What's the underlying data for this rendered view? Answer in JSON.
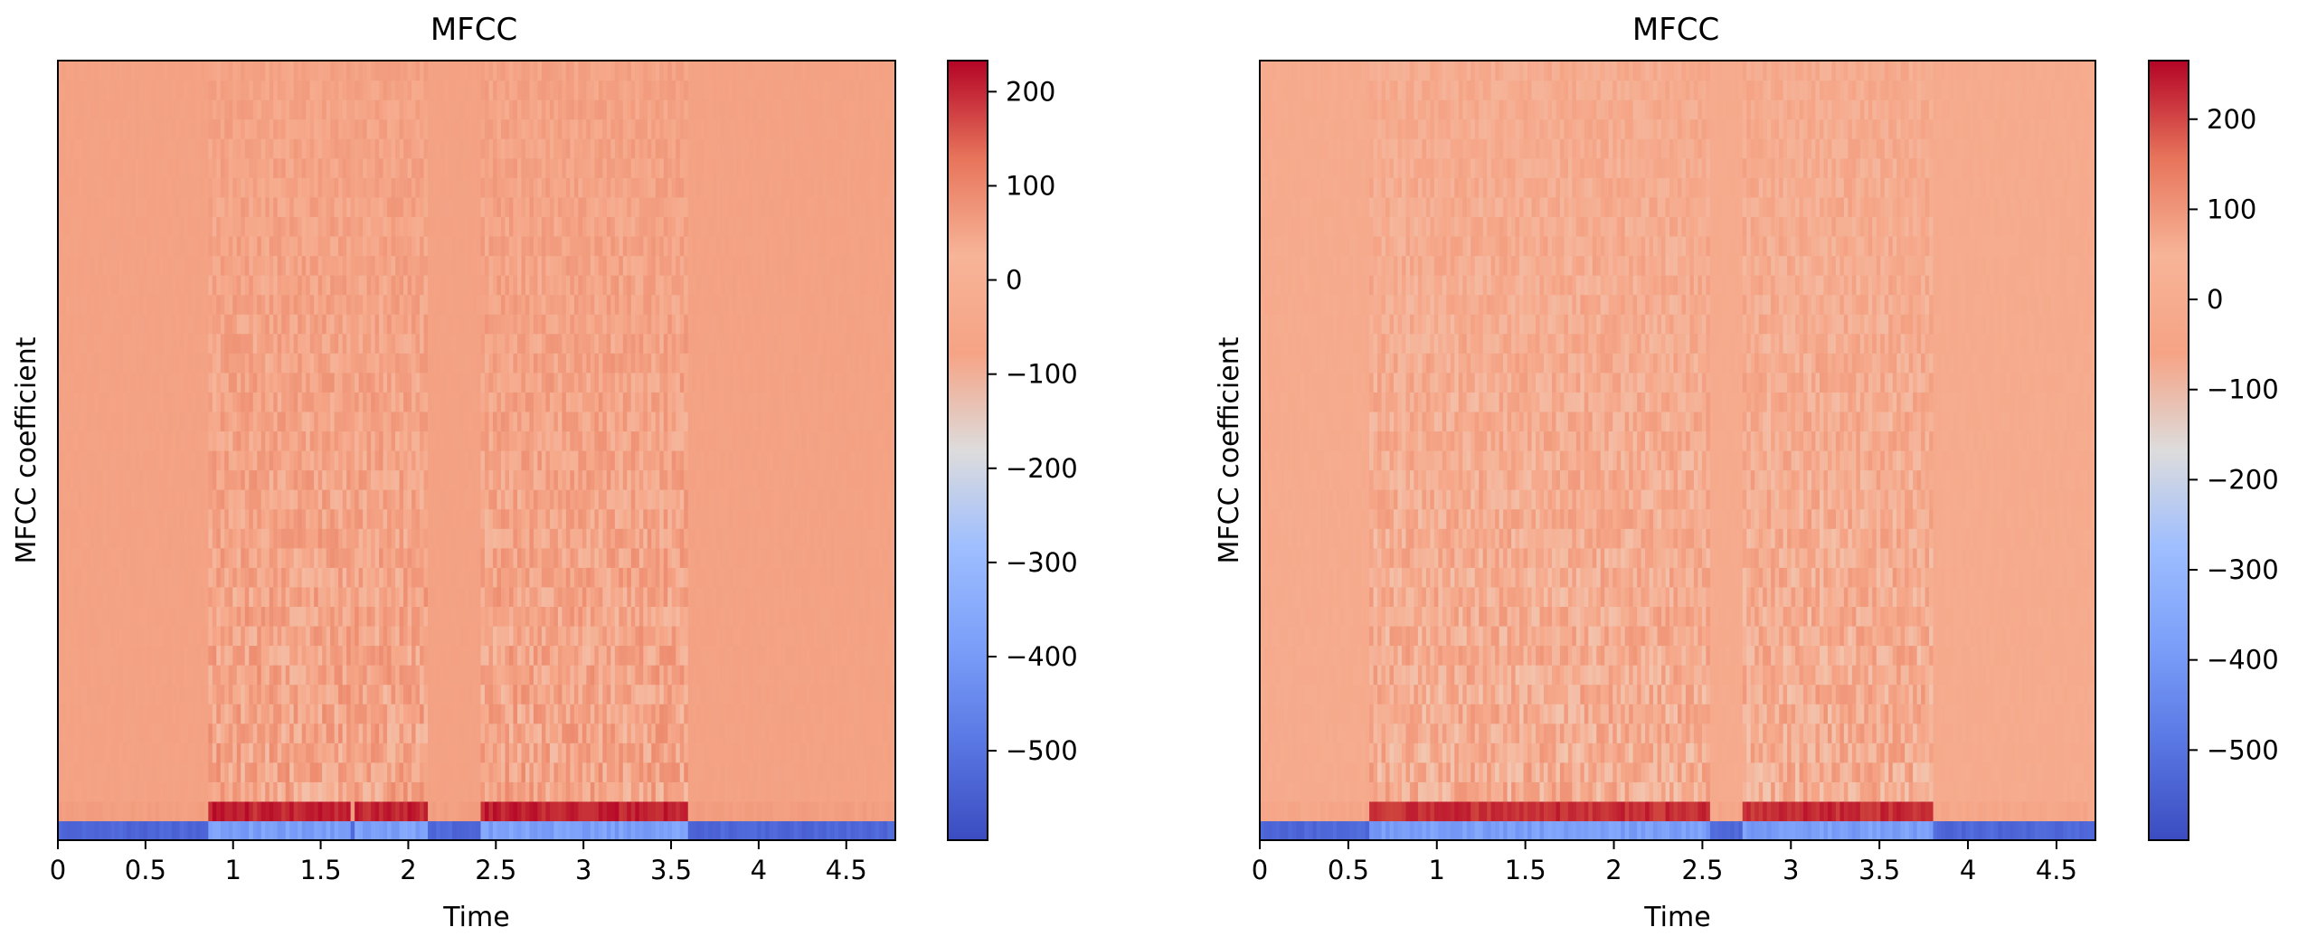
{
  "chart_data": [
    {
      "type": "heatmap",
      "title": "MFCC",
      "xlabel": "Time",
      "ylabel": "MFCC coefficient",
      "xlim": [
        0,
        4.78
      ],
      "x_ticks": [
        "0",
        "0.5",
        "1",
        "1.5",
        "2",
        "2.5",
        "3",
        "3.5",
        "4",
        "4.5"
      ],
      "n_coefficients": 40,
      "colormap": "coolwarm",
      "colorbar_range": [
        -595,
        233
      ],
      "colorbar_ticks": [
        "200",
        "100",
        "0",
        "−100",
        "−200",
        "−300",
        "−400",
        "−500"
      ],
      "background_value": 30,
      "voiced_segments": [
        [
          0.87,
          1.68
        ],
        [
          1.7,
          2.1
        ],
        [
          2.42,
          3.6
        ]
      ],
      "unvoiced_energy_segments": [
        [
          0.0,
          0.85
        ],
        [
          3.6,
          4.78
        ]
      ],
      "coefficient_0_range": [
        -500,
        -330
      ],
      "coefficient_1_peak": 220
    },
    {
      "type": "heatmap",
      "title": "MFCC",
      "xlabel": "Time",
      "ylabel": "MFCC coefficient",
      "xlim": [
        0,
        4.72
      ],
      "x_ticks": [
        "0",
        "0.5",
        "1",
        "1.5",
        "2",
        "2.5",
        "3",
        "3.5",
        "4",
        "4.5"
      ],
      "n_coefficients": 40,
      "colormap": "coolwarm",
      "colorbar_range": [
        -600,
        265
      ],
      "colorbar_ticks": [
        "200",
        "100",
        "0",
        "−100",
        "−200",
        "−300",
        "−400",
        "−500"
      ],
      "background_value": 35,
      "voiced_segments": [
        [
          0.62,
          2.55
        ],
        [
          2.72,
          3.8
        ]
      ],
      "unvoiced_energy_segments": [
        [
          0.0,
          0.6
        ],
        [
          3.85,
          4.72
        ]
      ],
      "coefficient_0_range": [
        -500,
        -330
      ],
      "coefficient_1_peak": 240
    }
  ]
}
